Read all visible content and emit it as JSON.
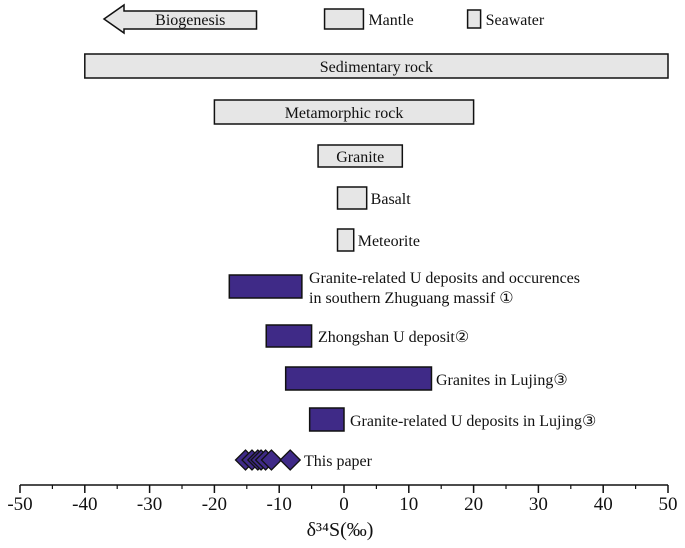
{
  "chart_data": {
    "type": "range-bar",
    "xlabel": "δ³⁴S(‰)",
    "xlim": [
      -50,
      50
    ],
    "xticks": [
      -50,
      -40,
      -30,
      -20,
      -10,
      0,
      10,
      20,
      30,
      40,
      50
    ],
    "reference_ranges": [
      {
        "name": "Sedimentary rock",
        "min": -40,
        "max": 50,
        "label_pos": "inside"
      },
      {
        "name": "Metamorphic rock",
        "min": -20,
        "max": 20,
        "label_pos": "inside"
      },
      {
        "name": "Granite",
        "min": -4,
        "max": 9,
        "label_pos": "inside"
      },
      {
        "name": "Basalt",
        "min": -1,
        "max": 3.5,
        "label_pos": "right"
      },
      {
        "name": "Meteorite",
        "min": -1,
        "max": 1.5,
        "label_pos": "right"
      }
    ],
    "top_legend": {
      "biogenesis": {
        "name": "Biogenesis",
        "max": -13.5
      },
      "mantle": {
        "name": "Mantle",
        "min": -3,
        "max": 3
      },
      "seawater": {
        "name": "Seawater",
        "value": 20
      }
    },
    "deposit_ranges": [
      {
        "name": "Granite-related U deposits and occurences in southern  Zhuguang  massif ①",
        "min": -17.7,
        "max": -6.5
      },
      {
        "name": "Zhongshan  U  deposit②",
        "min": -12,
        "max": -5
      },
      {
        "name": "Granites  in  Lujing③",
        "min": -9,
        "max": 13.5
      },
      {
        "name": "Granite-related U deposits in Lujing③",
        "min": -5.3,
        "max": 0
      }
    ],
    "this_paper": {
      "name": "This  paper",
      "values": [
        -15.2,
        -14.2,
        -13.3,
        -12.8,
        -12.1,
        -11.2,
        -8.3
      ]
    },
    "colors": {
      "reference_fill": "#e6e6e6",
      "deposit_fill": "#3f2a87",
      "stroke": "#111111"
    }
  }
}
